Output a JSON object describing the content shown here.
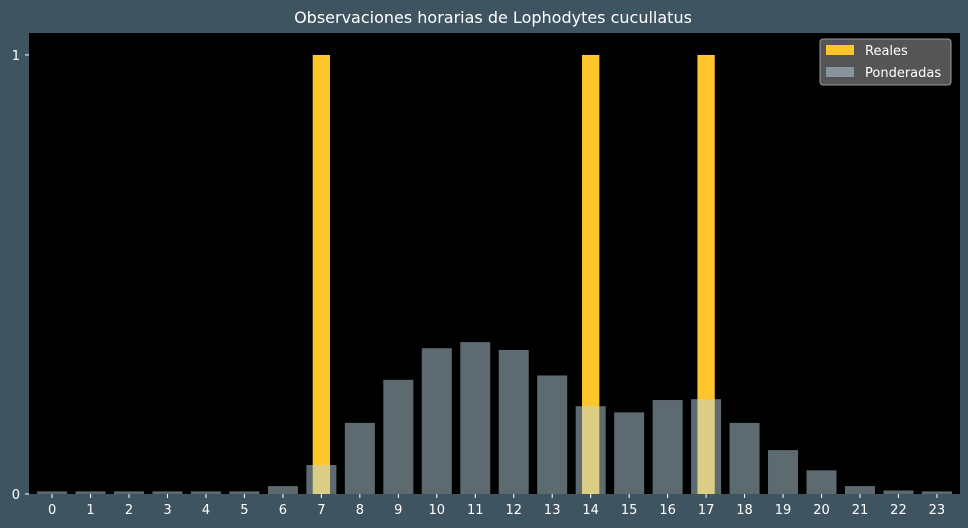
{
  "chart_data": {
    "type": "bar",
    "title": "Observaciones horarias de Lophodytes cucullatus",
    "xlabel": "",
    "ylabel": "",
    "categories": [
      "0",
      "1",
      "2",
      "3",
      "4",
      "5",
      "6",
      "7",
      "8",
      "9",
      "10",
      "11",
      "12",
      "13",
      "14",
      "15",
      "16",
      "17",
      "18",
      "19",
      "20",
      "21",
      "22",
      "23"
    ],
    "ylim": [
      0,
      1.05
    ],
    "yticks": [
      0,
      1
    ],
    "series": [
      {
        "name": "Reales",
        "color": "#ffc62b",
        "width": 0.45,
        "values": [
          0,
          0,
          0,
          0,
          0,
          0,
          0,
          1,
          0,
          0,
          0,
          0,
          0,
          0,
          1,
          0,
          0,
          1,
          0,
          0,
          0,
          0,
          0,
          0
        ]
      },
      {
        "name": "Ponderadas",
        "color": "#b9d4e0",
        "opacity": 0.5,
        "width": 0.78,
        "values": [
          0.006,
          0.006,
          0.006,
          0.006,
          0.006,
          0.006,
          0.018,
          0.066,
          0.162,
          0.26,
          0.332,
          0.346,
          0.328,
          0.27,
          0.2,
          0.186,
          0.214,
          0.216,
          0.162,
          0.1,
          0.054,
          0.018,
          0.008,
          0.006
        ]
      }
    ],
    "legend": "top-right",
    "grid": false,
    "colors": {
      "background": "#3e5461",
      "plot_area": "#000000",
      "text": "#ffffff"
    }
  }
}
